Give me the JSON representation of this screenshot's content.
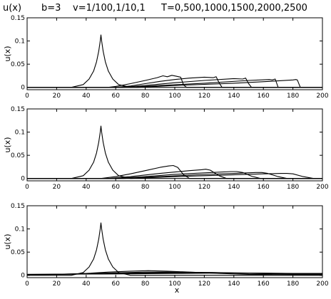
{
  "title": {
    "u": "u(x)",
    "b": "b=3",
    "nu": "v=1/100,1/10,1",
    "t": "T=0,500,1000,1500,2000,2500"
  },
  "colors": {
    "line": "#000000",
    "background": "#ffffff"
  },
  "chart_data": [
    {
      "type": "line",
      "ylabel": "u(x)",
      "xlabel": "",
      "xlim": [
        0,
        200
      ],
      "ylim": [
        -0.005,
        0.15
      ],
      "xticks": [
        0,
        20,
        40,
        60,
        80,
        100,
        120,
        140,
        160,
        180,
        200
      ],
      "yticks": [
        0,
        0.05,
        0.1,
        0.15
      ],
      "yticklabels": [
        "0",
        "0.05",
        "0.1",
        "0.15"
      ],
      "grid": false,
      "series": [
        {
          "x": [
            0,
            30,
            38,
            42,
            45,
            47,
            48.5,
            49.5,
            50,
            50.5,
            51.5,
            53,
            55,
            58,
            62,
            70,
            200
          ],
          "y": [
            0,
            0,
            0.006,
            0.018,
            0.035,
            0.055,
            0.078,
            0.1,
            0.113,
            0.1,
            0.078,
            0.055,
            0.035,
            0.018,
            0.006,
            0,
            0
          ]
        },
        {
          "x": [
            0,
            55,
            60,
            70,
            80,
            88,
            92,
            95,
            98,
            101,
            104,
            106,
            108,
            200
          ],
          "y": [
            0,
            0,
            0.002,
            0.008,
            0.015,
            0.021,
            0.025,
            0.023,
            0.026,
            0.024,
            0.022,
            0.005,
            0,
            0
          ]
        },
        {
          "x": [
            0,
            60,
            70,
            80,
            90,
            100,
            110,
            120,
            126,
            128,
            130,
            132,
            200
          ],
          "y": [
            0,
            0,
            0.003,
            0.008,
            0.013,
            0.017,
            0.02,
            0.022,
            0.021,
            0.023,
            0.01,
            0,
            0
          ]
        },
        {
          "x": [
            0,
            65,
            80,
            100,
            120,
            140,
            146,
            148,
            150,
            152,
            200
          ],
          "y": [
            0,
            0,
            0.004,
            0.01,
            0.015,
            0.019,
            0.018,
            0.02,
            0.008,
            0,
            0
          ]
        },
        {
          "x": [
            0,
            70,
            90,
            120,
            150,
            164,
            166,
            168,
            170,
            200
          ],
          "y": [
            0,
            0,
            0.004,
            0.009,
            0.015,
            0.017,
            0.016,
            0.018,
            0,
            0
          ]
        },
        {
          "x": [
            0,
            75,
            100,
            140,
            170,
            180,
            182,
            183,
            185,
            200
          ],
          "y": [
            0,
            0,
            0.004,
            0.009,
            0.014,
            0.016,
            0.017,
            0.016,
            0,
            0
          ]
        }
      ]
    },
    {
      "type": "line",
      "ylabel": "u(x)",
      "xlabel": "",
      "xlim": [
        0,
        200
      ],
      "ylim": [
        -0.005,
        0.15
      ],
      "xticks": [
        0,
        20,
        40,
        60,
        80,
        100,
        120,
        140,
        160,
        180,
        200
      ],
      "yticks": [
        0,
        0.05,
        0.1,
        0.15
      ],
      "yticklabels": [
        "0",
        "0.05",
        "0.1",
        "0.15"
      ],
      "grid": false,
      "series": [
        {
          "x": [
            0,
            30,
            38,
            42,
            45,
            47,
            48.5,
            49.5,
            50,
            50.5,
            51.5,
            53,
            55,
            58,
            62,
            70,
            200
          ],
          "y": [
            0,
            0,
            0.006,
            0.018,
            0.035,
            0.055,
            0.078,
            0.1,
            0.113,
            0.1,
            0.078,
            0.055,
            0.035,
            0.018,
            0.006,
            0,
            0
          ]
        },
        {
          "x": [
            0,
            50,
            60,
            70,
            80,
            90,
            96,
            99,
            102,
            106,
            110,
            200
          ],
          "y": [
            0,
            0,
            0.004,
            0.01,
            0.017,
            0.024,
            0.027,
            0.028,
            0.024,
            0.008,
            0,
            0
          ]
        },
        {
          "x": [
            0,
            55,
            70,
            90,
            110,
            118,
            121,
            124,
            130,
            135,
            200
          ],
          "y": [
            0,
            0,
            0.004,
            0.011,
            0.017,
            0.019,
            0.02,
            0.018,
            0.006,
            0,
            0
          ]
        },
        {
          "x": [
            0,
            60,
            80,
            100,
            125,
            138,
            142,
            146,
            152,
            158,
            200
          ],
          "y": [
            0,
            0,
            0.004,
            0.009,
            0.013,
            0.015,
            0.015,
            0.013,
            0.005,
            0,
            0
          ]
        },
        {
          "x": [
            0,
            65,
            90,
            115,
            140,
            155,
            159,
            163,
            170,
            176,
            200
          ],
          "y": [
            0,
            0,
            0.004,
            0.008,
            0.011,
            0.013,
            0.013,
            0.011,
            0.004,
            0,
            0
          ]
        },
        {
          "x": [
            0,
            70,
            100,
            130,
            160,
            172,
            176,
            180,
            187,
            194,
            200
          ],
          "y": [
            0,
            0,
            0.004,
            0.007,
            0.01,
            0.011,
            0.011,
            0.01,
            0.004,
            0,
            0
          ]
        }
      ]
    },
    {
      "type": "line",
      "ylabel": "u(x)",
      "xlabel": "x",
      "xlim": [
        0,
        200
      ],
      "ylim": [
        -0.005,
        0.15
      ],
      "xticks": [
        0,
        20,
        40,
        60,
        80,
        100,
        120,
        140,
        160,
        180,
        200
      ],
      "yticks": [
        0,
        0.05,
        0.1,
        0.15
      ],
      "yticklabels": [
        "0",
        "0.05",
        "0.1",
        "0.15"
      ],
      "grid": false,
      "series": [
        {
          "x": [
            0,
            30,
            38,
            42,
            45,
            47,
            48.5,
            49.5,
            50,
            50.5,
            51.5,
            53,
            55,
            58,
            62,
            70,
            200
          ],
          "y": [
            0,
            0,
            0.006,
            0.018,
            0.035,
            0.055,
            0.078,
            0.1,
            0.113,
            0.1,
            0.078,
            0.055,
            0.035,
            0.018,
            0.006,
            0,
            0
          ]
        },
        {
          "x": [
            0,
            20,
            40,
            55,
            70,
            82,
            95,
            110,
            130,
            150,
            200
          ],
          "y": [
            0.001,
            0.002,
            0.004,
            0.007,
            0.009,
            0.01,
            0.009,
            0.007,
            0.004,
            0.002,
            0.001
          ]
        },
        {
          "x": [
            0,
            30,
            55,
            80,
            100,
            125,
            150,
            200
          ],
          "y": [
            0.001,
            0.003,
            0.005,
            0.007,
            0.007,
            0.006,
            0.004,
            0.002
          ]
        },
        {
          "x": [
            0,
            40,
            70,
            100,
            125,
            150,
            175,
            200
          ],
          "y": [
            0.001,
            0.003,
            0.005,
            0.006,
            0.006,
            0.005,
            0.004,
            0.003
          ]
        },
        {
          "x": [
            0,
            50,
            90,
            120,
            150,
            180,
            200
          ],
          "y": [
            0.002,
            0.003,
            0.005,
            0.005,
            0.005,
            0.004,
            0.003
          ]
        },
        {
          "x": [
            0,
            60,
            100,
            140,
            170,
            200
          ],
          "y": [
            0.002,
            0.003,
            0.004,
            0.005,
            0.004,
            0.004
          ]
        }
      ]
    }
  ]
}
